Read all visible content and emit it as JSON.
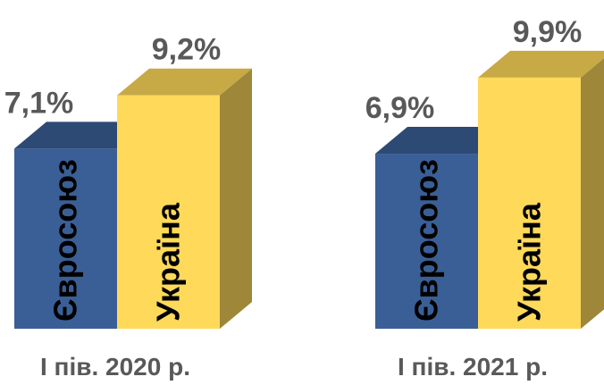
{
  "chart_data": {
    "type": "bar",
    "style": "3d-clustered-column",
    "categories": [
      "І пів. 2020 р.",
      "І пів. 2021 р."
    ],
    "series": [
      {
        "name": "Євросоюз",
        "values": [
          7.1,
          6.9
        ],
        "value_labels": [
          "7,1%",
          "6,9%"
        ],
        "color": "#3A5F96"
      },
      {
        "name": "Україна",
        "values": [
          9.2,
          9.9
        ],
        "value_labels": [
          "9,2%",
          "9,9%"
        ],
        "color": "#FFD95A"
      }
    ],
    "unit": "%",
    "legend": "none (series names written vertically inside bars)",
    "grid": false
  }
}
